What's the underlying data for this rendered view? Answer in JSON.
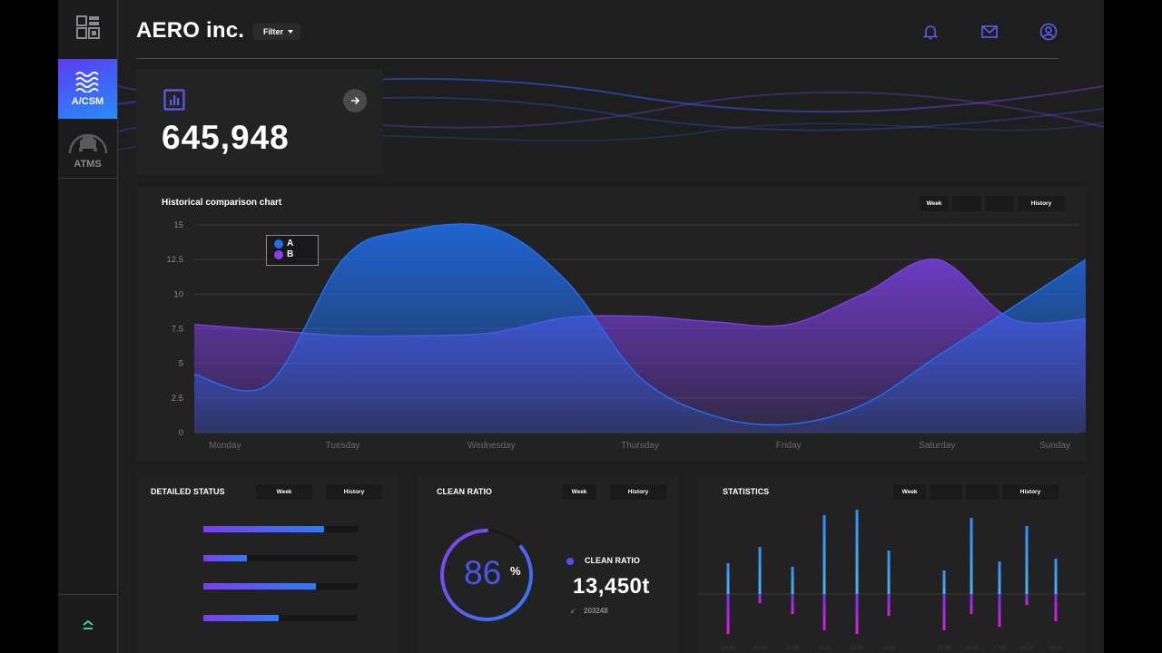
{
  "header": {
    "title": "AERO inc.",
    "filter_label": "Filter"
  },
  "sidebar": {
    "items": [
      {
        "label": "A/CSM",
        "icon": "waves-icon",
        "active": true
      },
      {
        "label": "ATMS",
        "icon": "car-icon",
        "active": false
      }
    ],
    "bottom_icon": "chevron-up-icon"
  },
  "kpi": {
    "value": "645,948",
    "icon": "bar-chart-icon",
    "action_icon": "arrow-right-icon"
  },
  "historical": {
    "title": "Historical comparison chart",
    "segments": [
      {
        "label": "Week",
        "active": true
      },
      {
        "label": "",
        "active": false
      },
      {
        "label": "",
        "active": false
      },
      {
        "label": "History",
        "active": true
      }
    ]
  },
  "chart_data": {
    "type": "area",
    "title": "Historical comparison chart",
    "categories": [
      "Monday",
      "Tuesday",
      "Wednesday",
      "Thursday",
      "Friday",
      "Saturday",
      "Sunday"
    ],
    "y_ticks": [
      "0",
      "2.5",
      "5",
      "7.5",
      "10",
      "12.5",
      "15"
    ],
    "ylim": [
      0,
      15
    ],
    "legend": [
      "A",
      "B"
    ],
    "series": [
      {
        "name": "A",
        "color": "#1f6ff0",
        "x": [
          0,
          0.5,
          1,
          1.4,
          2,
          2.5,
          3,
          3.5,
          4,
          4.5,
          5,
          5.5,
          6
        ],
        "values": [
          4.2,
          3.5,
          12.5,
          14.5,
          14.8,
          11,
          4,
          1.2,
          0.6,
          2,
          5.5,
          9,
          12.5
        ]
      },
      {
        "name": "B",
        "color": "#7a3fe0",
        "x": [
          0,
          0.5,
          1,
          1.5,
          2,
          2.5,
          3,
          3.5,
          4,
          4.5,
          5,
          5.5,
          6
        ],
        "values": [
          7.8,
          7.4,
          7.0,
          7.0,
          7.2,
          8.3,
          8.4,
          8.0,
          7.8,
          10,
          12.5,
          8.2,
          8.2
        ]
      }
    ]
  },
  "detailed_status": {
    "title": "DETAILED STATUS",
    "segments": [
      {
        "label": "Week",
        "active": true
      },
      {
        "label": "History",
        "active": true
      }
    ],
    "bars": [
      {
        "value": 0.78
      },
      {
        "value": 0.28
      },
      {
        "value": 0.73
      },
      {
        "value": 0.49
      }
    ]
  },
  "clean_ratio": {
    "title": "CLEAN RATIO",
    "segments": [
      {
        "label": "Week",
        "active": true
      },
      {
        "label": "History",
        "active": true
      }
    ],
    "percent": "86",
    "percent_symbol": "%",
    "percent_value": 0.86,
    "label": "CLEAN RATIO",
    "value": "13,450t",
    "sub_value": "203248",
    "sub_icon": "arrow-down-left-icon"
  },
  "statistics": {
    "title": "STATISTICS",
    "segments": [
      {
        "label": "Week",
        "active": true
      },
      {
        "label": "",
        "active": false
      },
      {
        "label": "",
        "active": false
      },
      {
        "label": "History",
        "active": true
      }
    ],
    "bars": [
      {
        "up": 34,
        "down": 44
      },
      {
        "up": 52,
        "down": 10
      },
      {
        "up": 30,
        "down": 22
      },
      {
        "up": 87,
        "down": 40
      },
      {
        "up": 93,
        "down": 44
      },
      {
        "up": 48,
        "down": 24
      },
      {
        "up": 26,
        "down": 40
      },
      {
        "up": 84,
        "down": 22
      },
      {
        "up": 36,
        "down": 36
      },
      {
        "up": 75,
        "down": 12
      },
      {
        "up": 39,
        "down": 30
      }
    ],
    "tick_labels": [
      "09:00",
      "10:00",
      "11:00",
      "12:00",
      "13:00",
      "14:00",
      "15:00",
      "16:00",
      "17:00",
      "18:00",
      "19:00"
    ]
  },
  "header_icons": [
    "bell-icon",
    "mail-icon",
    "user-icon"
  ],
  "colors": {
    "accent_blue": "#2f6ef0",
    "accent_purple": "#8a3ff0",
    "icon_blue": "#5b5cf0",
    "magenta": "#d81ee0"
  }
}
